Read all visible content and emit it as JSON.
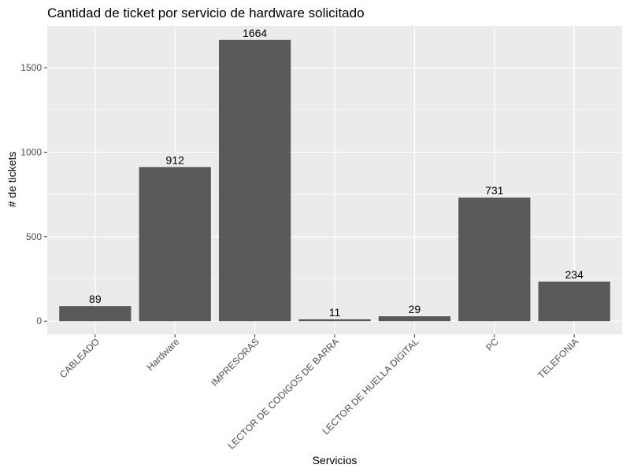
{
  "chart_data": {
    "type": "bar",
    "title": "Cantidad de ticket por servicio de hardware solicitado",
    "xlabel": "Servicios",
    "ylabel": "# de tickets",
    "categories": [
      "CABLEADO",
      "Hardware",
      "IMPRESORAS",
      "LECTOR DE CODIGOS DE BARRA",
      "LECTOR DE HUELLA DIGITAL",
      "PC",
      "TELEFONIA"
    ],
    "values": [
      89,
      912,
      1664,
      11,
      29,
      731,
      234
    ],
    "ylim": [
      -78,
      1747
    ],
    "yticks": [
      0,
      500,
      1000,
      1500
    ],
    "grid": true,
    "legend": "none",
    "colors": {
      "bar": "#595959",
      "panel": "#ebebeb",
      "grid": "#ffffff"
    }
  }
}
